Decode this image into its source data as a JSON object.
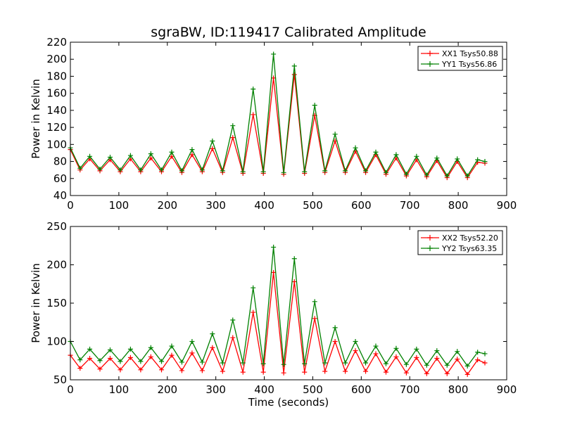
{
  "chart_data": [
    {
      "type": "line",
      "title": "sgraBW, ID:119417 Calibrated Amplitude",
      "xlabel": "",
      "ylabel": "Power in Kelvin",
      "xlim": [
        0,
        900
      ],
      "ylim": [
        40,
        220
      ],
      "xticks": [
        0,
        100,
        200,
        300,
        400,
        500,
        600,
        700,
        800,
        900
      ],
      "yticks": [
        40,
        60,
        80,
        100,
        120,
        140,
        160,
        180,
        200,
        220
      ],
      "grid": false,
      "legend_position": "top-right",
      "marker": "+",
      "x": [
        0,
        20,
        40,
        61,
        82,
        103,
        124,
        145,
        166,
        188,
        209,
        230,
        251,
        272,
        293,
        314,
        335,
        356,
        377,
        398,
        419,
        440,
        462,
        483,
        504,
        525,
        546,
        567,
        588,
        609,
        630,
        651,
        672,
        693,
        714,
        735,
        756,
        777,
        798,
        819,
        840,
        855
      ],
      "series": [
        {
          "name": "XX1 Tsys50.88",
          "color": "#ff0000",
          "values": [
            94,
            70,
            83,
            69,
            82,
            68,
            83,
            68,
            84,
            68,
            86,
            67,
            88,
            68,
            95,
            67,
            108,
            66,
            135,
            66,
            178,
            65,
            182,
            66,
            134,
            67,
            104,
            67,
            92,
            67,
            88,
            65,
            84,
            63,
            82,
            62,
            81,
            61,
            80,
            61,
            79,
            78
          ]
        },
        {
          "name": "YY1 Tsys56.86",
          "color": "#008000",
          "values": [
            96,
            72,
            86,
            71,
            85,
            70,
            87,
            70,
            89,
            70,
            91,
            69,
            94,
            70,
            104,
            69,
            122,
            68,
            165,
            68,
            206,
            67,
            192,
            68,
            146,
            69,
            112,
            69,
            96,
            69,
            91,
            67,
            88,
            65,
            86,
            64,
            84,
            63,
            83,
            63,
            82,
            80
          ]
        }
      ]
    },
    {
      "type": "line",
      "title": "",
      "xlabel": "Time (seconds)",
      "ylabel": "Power in Kelvin",
      "xlim": [
        0,
        900
      ],
      "ylim": [
        50,
        250
      ],
      "xticks": [
        0,
        100,
        200,
        300,
        400,
        500,
        600,
        700,
        800,
        900
      ],
      "yticks": [
        50,
        100,
        150,
        200,
        250
      ],
      "grid": false,
      "legend_position": "top-right",
      "marker": "+",
      "x": [
        0,
        20,
        40,
        61,
        82,
        103,
        124,
        145,
        166,
        188,
        209,
        230,
        251,
        272,
        293,
        314,
        335,
        356,
        377,
        398,
        419,
        440,
        462,
        483,
        504,
        525,
        546,
        567,
        588,
        609,
        630,
        651,
        672,
        693,
        714,
        735,
        756,
        777,
        798,
        819,
        840,
        855
      ],
      "series": [
        {
          "name": "XX2 Tsys52.20",
          "color": "#ff0000",
          "values": [
            82,
            65,
            78,
            64,
            78,
            63,
            79,
            63,
            80,
            63,
            82,
            62,
            85,
            62,
            92,
            61,
            105,
            60,
            138,
            60,
            190,
            59,
            178,
            60,
            130,
            61,
            100,
            61,
            88,
            61,
            84,
            60,
            80,
            59,
            79,
            58,
            78,
            58,
            77,
            57,
            76,
            72
          ]
        },
        {
          "name": "YY2 Tsys63.35",
          "color": "#008000",
          "values": [
            100,
            76,
            90,
            75,
            89,
            74,
            90,
            74,
            92,
            74,
            94,
            73,
            100,
            73,
            110,
            72,
            128,
            72,
            170,
            71,
            223,
            70,
            208,
            71,
            152,
            72,
            118,
            72,
            100,
            72,
            94,
            71,
            91,
            70,
            90,
            69,
            88,
            69,
            87,
            68,
            86,
            84
          ]
        }
      ]
    }
  ]
}
